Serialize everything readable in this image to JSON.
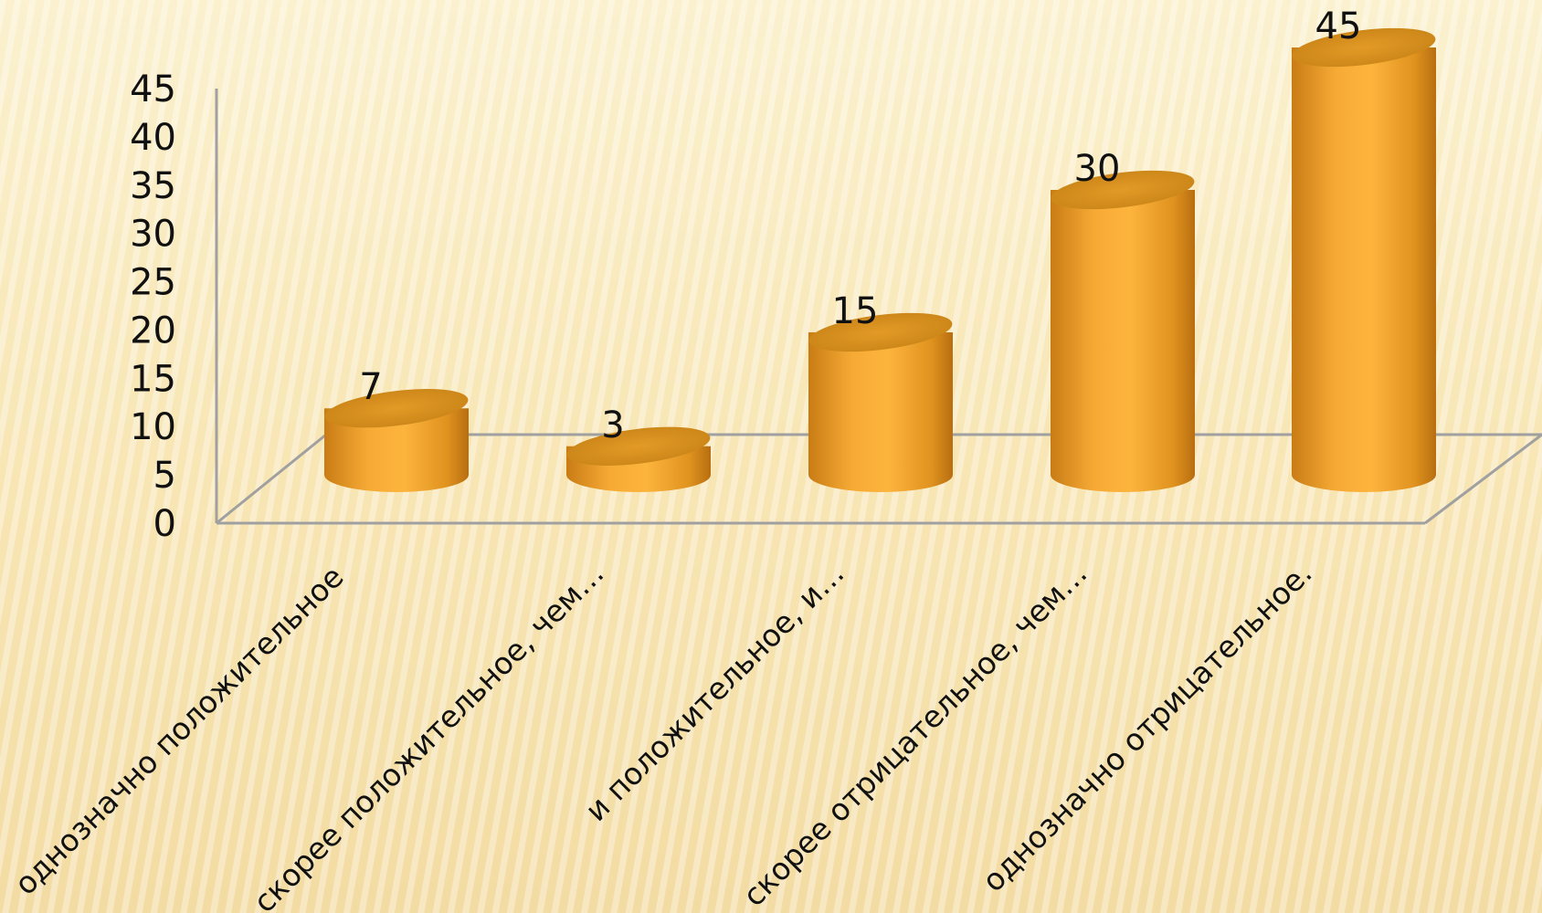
{
  "chart_data": {
    "type": "bar",
    "style": "3d-cylinder",
    "categories": [
      "однозначно положительное",
      "скорее положительное, чем…",
      "и положительное, и…",
      "скорее отрицательное, чем…",
      "однозначно отрицательное."
    ],
    "values": [
      7,
      3,
      15,
      30,
      45
    ],
    "data_labels": [
      "7",
      "3",
      "15",
      "30",
      "45"
    ],
    "y_ticks": [
      "0",
      "5",
      "10",
      "15",
      "20",
      "25",
      "30",
      "35",
      "40",
      "45"
    ],
    "ylim": [
      0,
      45
    ],
    "title": "",
    "xlabel": "",
    "ylabel": "",
    "grid": false,
    "legend": "none",
    "colors": {
      "bar_fill": "#f2a12e",
      "bar_top": "#d98f1c",
      "axis": "#a0a0a0"
    }
  }
}
